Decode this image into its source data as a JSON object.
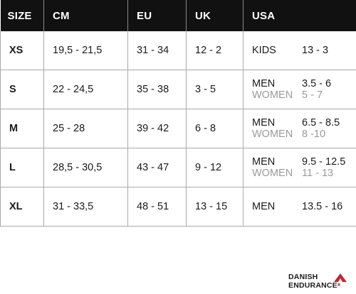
{
  "table": {
    "headers": [
      "SIZE",
      "CM",
      "EU",
      "UK",
      "USA"
    ],
    "rows": [
      {
        "size": "XS",
        "cm": "19,5 - 21,5",
        "eu": "31 - 34",
        "uk": "12 - 2",
        "usa": [
          {
            "label": "KIDS",
            "value": "13 - 3"
          }
        ]
      },
      {
        "size": "S",
        "cm": "22 - 24,5",
        "eu": "35 - 38",
        "uk": "3 - 5",
        "usa": [
          {
            "label": "MEN",
            "value": "3.5 - 6"
          },
          {
            "label": "WOMEN",
            "value": "5 - 7"
          }
        ]
      },
      {
        "size": "M",
        "cm": "25 - 28",
        "eu": "39 - 42",
        "uk": "6 - 8",
        "usa": [
          {
            "label": "MEN",
            "value": "6.5 - 8.5"
          },
          {
            "label": "WOMEN",
            "value": "8 -10"
          }
        ]
      },
      {
        "size": "L",
        "cm": "28,5 - 30,5",
        "eu": "43 - 47",
        "uk": "9 - 12",
        "usa": [
          {
            "label": "MEN",
            "value": "9.5 - 12.5"
          },
          {
            "label": "WOMEN",
            "value": "11 - 13"
          }
        ]
      },
      {
        "size": "XL",
        "cm": "31 - 33,5",
        "eu": "48 - 51",
        "uk": "13 - 15",
        "usa": [
          {
            "label": "MEN",
            "value": "13.5 - 16"
          }
        ]
      }
    ]
  },
  "logo": {
    "line1": "DANISH",
    "line2": "ENDURANCE",
    "registered": "®",
    "icon": "mountain-peak-icon"
  },
  "colors": {
    "header_bg": "#111111",
    "header_text": "#ffffff",
    "women_text": "#9a9a9a",
    "grid": "#a9a9a9",
    "logo_accent": "#c0282d"
  }
}
